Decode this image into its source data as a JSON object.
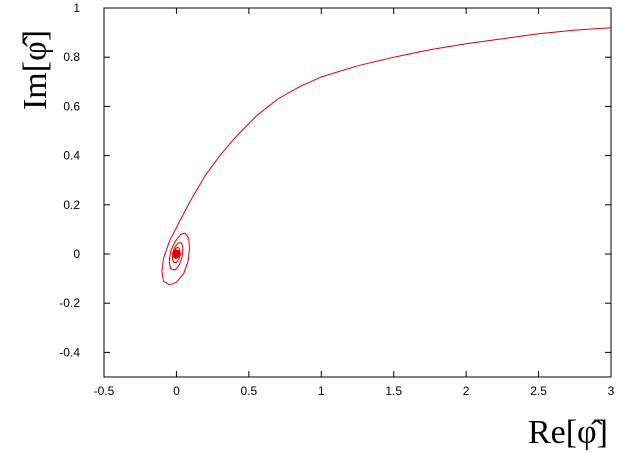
{
  "chart_data": {
    "type": "line",
    "title": "",
    "xlabel": "Re[φ̂]",
    "ylabel": "Im[φ̂]",
    "xlim": [
      -0.5,
      3
    ],
    "ylim": [
      -0.5,
      1
    ],
    "xticks": [
      "-0.5",
      "0",
      "0.5",
      "1",
      "1.5",
      "2",
      "2.5",
      "3"
    ],
    "yticks": [
      "-0.4",
      "-0.2",
      "0",
      "0.2",
      "0.4",
      "0.6",
      "0.8",
      "1"
    ],
    "grid": false,
    "series": [
      {
        "color": "#e00000",
        "points": [
          [
            3.0,
            0.92
          ],
          [
            2.75,
            0.91
          ],
          [
            2.5,
            0.895
          ],
          [
            2.25,
            0.875
          ],
          [
            2.0,
            0.855
          ],
          [
            1.75,
            0.83
          ],
          [
            1.5,
            0.8
          ],
          [
            1.25,
            0.765
          ],
          [
            1.0,
            0.72
          ],
          [
            0.85,
            0.68
          ],
          [
            0.7,
            0.63
          ],
          [
            0.55,
            0.56
          ],
          [
            0.4,
            0.47
          ],
          [
            0.3,
            0.4
          ],
          [
            0.2,
            0.32
          ],
          [
            0.1,
            0.22
          ],
          [
            0.02,
            0.13
          ],
          [
            -0.05,
            0.05
          ],
          [
            -0.09,
            -0.02
          ],
          [
            -0.1,
            -0.07
          ],
          [
            -0.09,
            -0.11
          ],
          [
            -0.05,
            -0.125
          ],
          [
            0.0,
            -0.115
          ],
          [
            0.05,
            -0.08
          ],
          [
            0.08,
            -0.03
          ],
          [
            0.09,
            0.02
          ],
          [
            0.085,
            0.065
          ],
          [
            0.06,
            0.085
          ],
          [
            0.03,
            0.08
          ],
          [
            -0.01,
            0.05
          ],
          [
            -0.04,
            0.01
          ],
          [
            -0.05,
            -0.03
          ],
          [
            -0.04,
            -0.06
          ],
          [
            -0.01,
            -0.065
          ],
          [
            0.02,
            -0.045
          ],
          [
            0.04,
            -0.01
          ],
          [
            0.045,
            0.025
          ],
          [
            0.035,
            0.045
          ],
          [
            0.015,
            0.045
          ],
          [
            -0.01,
            0.03
          ],
          [
            -0.025,
            0.005
          ],
          [
            -0.028,
            -0.02
          ],
          [
            -0.018,
            -0.035
          ],
          [
            0.0,
            -0.035
          ],
          [
            0.018,
            -0.02
          ],
          [
            0.025,
            0.0
          ],
          [
            0.022,
            0.02
          ],
          [
            0.01,
            0.028
          ],
          [
            -0.005,
            0.022
          ],
          [
            -0.015,
            0.008
          ],
          [
            -0.016,
            -0.008
          ],
          [
            -0.008,
            -0.018
          ],
          [
            0.004,
            -0.018
          ],
          [
            0.012,
            -0.008
          ],
          [
            0.013,
            0.006
          ],
          [
            0.006,
            0.014
          ],
          [
            -0.003,
            0.012
          ],
          [
            -0.008,
            0.004
          ],
          [
            -0.007,
            -0.005
          ],
          [
            -0.001,
            -0.009
          ],
          [
            0.005,
            -0.006
          ],
          [
            0.007,
            0.001
          ],
          [
            0.004,
            0.006
          ],
          [
            -0.001,
            0.006
          ],
          [
            -0.004,
            0.002
          ],
          [
            -0.003,
            -0.003
          ],
          [
            0.001,
            -0.004
          ],
          [
            0.003,
            -0.001
          ],
          [
            0.002,
            0.002
          ],
          [
            0.0,
            0.0
          ]
        ]
      }
    ]
  }
}
